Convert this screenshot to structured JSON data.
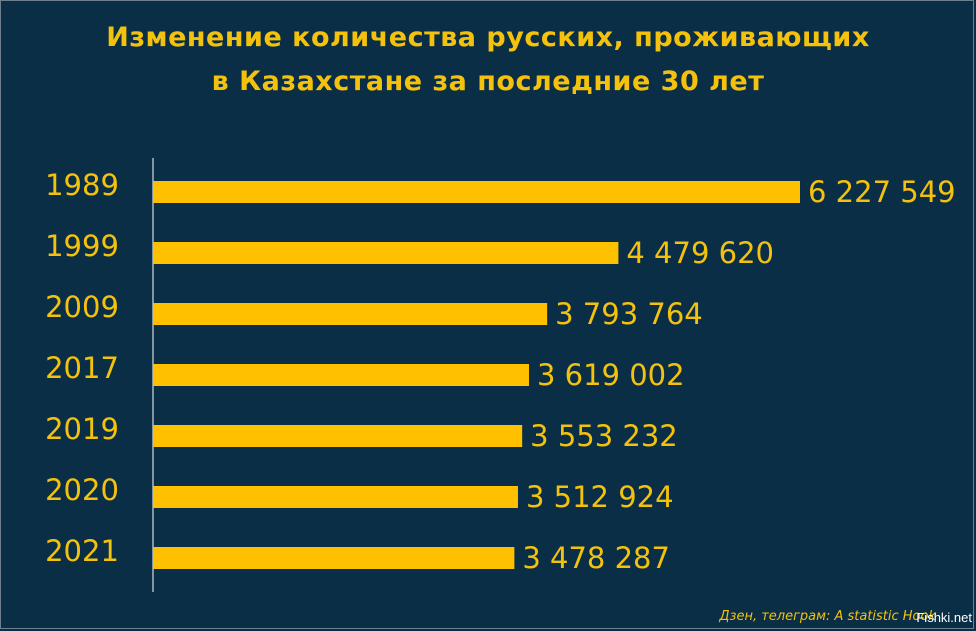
{
  "chart_data": {
    "type": "bar",
    "orientation": "horizontal",
    "title_lines": [
      "Изменение количества русских, проживающих",
      "в Казахстане за последние 30 лет"
    ],
    "categories": [
      "1989",
      "1999",
      "2009",
      "2017",
      "2019",
      "2020",
      "2021"
    ],
    "values": [
      6227549,
      4479620,
      3793764,
      3619002,
      3553232,
      3512924,
      3478287
    ],
    "value_labels": [
      "6 227 549",
      "4 479 620",
      "3 793 764",
      "3 619 002",
      "3 553 232",
      "3 512 924",
      "3 478 287"
    ],
    "xlim": [
      0,
      6227549
    ],
    "grid": false,
    "legend": "none"
  },
  "colors": {
    "background": "#0a2e45",
    "bar": "#ffc000",
    "text": "#f4c20d",
    "axis": "#ffffff"
  },
  "footer": {
    "source": "Дзен, телеграм: A statistic Hook",
    "watermark": "Fishki.net"
  }
}
